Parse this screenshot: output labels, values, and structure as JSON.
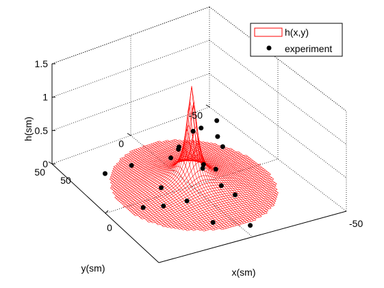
{
  "chart_data": {
    "type": "surface-3d",
    "surface_series": {
      "name": "h(x,y)",
      "color": "#ff0000"
    },
    "scatter_series": {
      "name": "experiment",
      "color": "#000000",
      "points": [
        {
          "x": -10,
          "y": -22,
          "z": 0.65
        },
        {
          "x": -13,
          "y": -15,
          "z": 0.55
        },
        {
          "x": -14,
          "y": -11,
          "z": 0.52
        },
        {
          "x": -8,
          "y": -21,
          "z": 0.45
        },
        {
          "x": -4,
          "y": -21,
          "z": 0.36
        },
        {
          "x": -15,
          "y": -3,
          "z": 0.3
        },
        {
          "x": -13,
          "y": 3,
          "z": 0.25
        },
        {
          "x": -24,
          "y": -10,
          "z": 0.14
        },
        {
          "x": -7,
          "y": -12,
          "z": 0.12
        },
        {
          "x": -5,
          "y": -10,
          "z": 0.11
        },
        {
          "x": 0,
          "y": -14,
          "z": 0.14
        },
        {
          "x": 10,
          "y": -10,
          "z": 0.08
        },
        {
          "x": 21,
          "y": -10,
          "z": 0.11
        },
        {
          "x": -25,
          "y": 18,
          "z": 0.08
        },
        {
          "x": -28,
          "y": 32,
          "z": 0.03
        },
        {
          "x": -1,
          "y": 17,
          "z": 0.1
        },
        {
          "x": 12,
          "y": 11,
          "z": 0.05
        },
        {
          "x": 10,
          "y": 23,
          "z": 0.04
        },
        {
          "x": 6,
          "y": 32,
          "z": 0.03
        },
        {
          "x": 34,
          "y": 11,
          "z": 0.06
        },
        {
          "x": 42,
          "y": -4,
          "z": 0.02
        }
      ]
    },
    "xlabel": "x(sm)",
    "ylabel": "y(sm)",
    "zlabel": "h(sm)",
    "xlim": [
      -50,
      50
    ],
    "ylim": [
      -50,
      50
    ],
    "zlim": [
      0,
      1.5
    ],
    "x_ticks": [
      "0"
    ],
    "x_tick_values": [
      0
    ],
    "x_tick_end_label": "-50",
    "y_ticks": [
      "-50",
      "0",
      "50"
    ],
    "y_tick_values": [
      -50,
      0,
      50
    ],
    "z_ticks": [
      "0",
      "0.5",
      "1",
      "1.5"
    ],
    "z_tick_values": [
      0,
      0.5,
      1,
      1.5
    ],
    "x_axis_end_label": "50",
    "grid": true,
    "legend_position": "top-right",
    "legend": [
      "h(x,y)",
      "experiment"
    ]
  }
}
